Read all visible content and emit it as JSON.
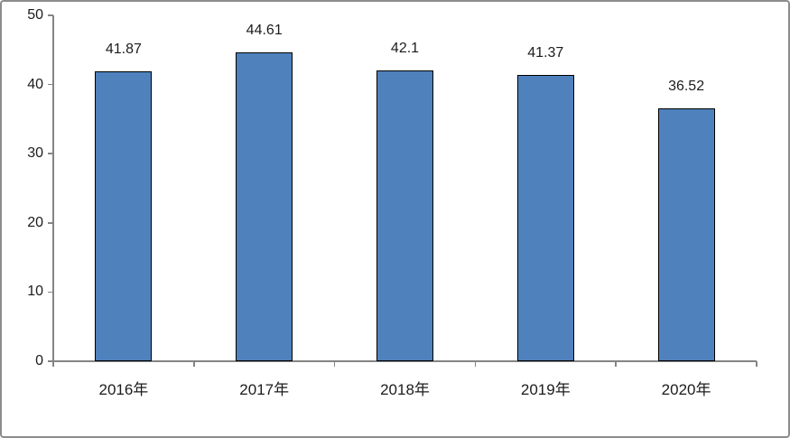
{
  "chart_data": {
    "type": "bar",
    "title": "",
    "xlabel": "",
    "ylabel": "",
    "categories": [
      "2016年",
      "2017年",
      "2018年",
      "2019年",
      "2020年"
    ],
    "values": [
      41.87,
      44.61,
      42.1,
      41.37,
      36.52
    ],
    "data_labels": [
      "41.87",
      "44.61",
      "42.1",
      "41.37",
      "36.52"
    ],
    "ylim": [
      0,
      50
    ],
    "yticks": [
      0,
      10,
      20,
      30,
      40,
      50
    ],
    "grid": false,
    "legend_position": "none",
    "colors": {
      "bar_fill": "#4f81bd",
      "bar_border": "#000000",
      "axis_line": "#848484",
      "text": "#1c1c1c",
      "frame_border": "#8c8c8c",
      "background": "#ffffff"
    }
  }
}
